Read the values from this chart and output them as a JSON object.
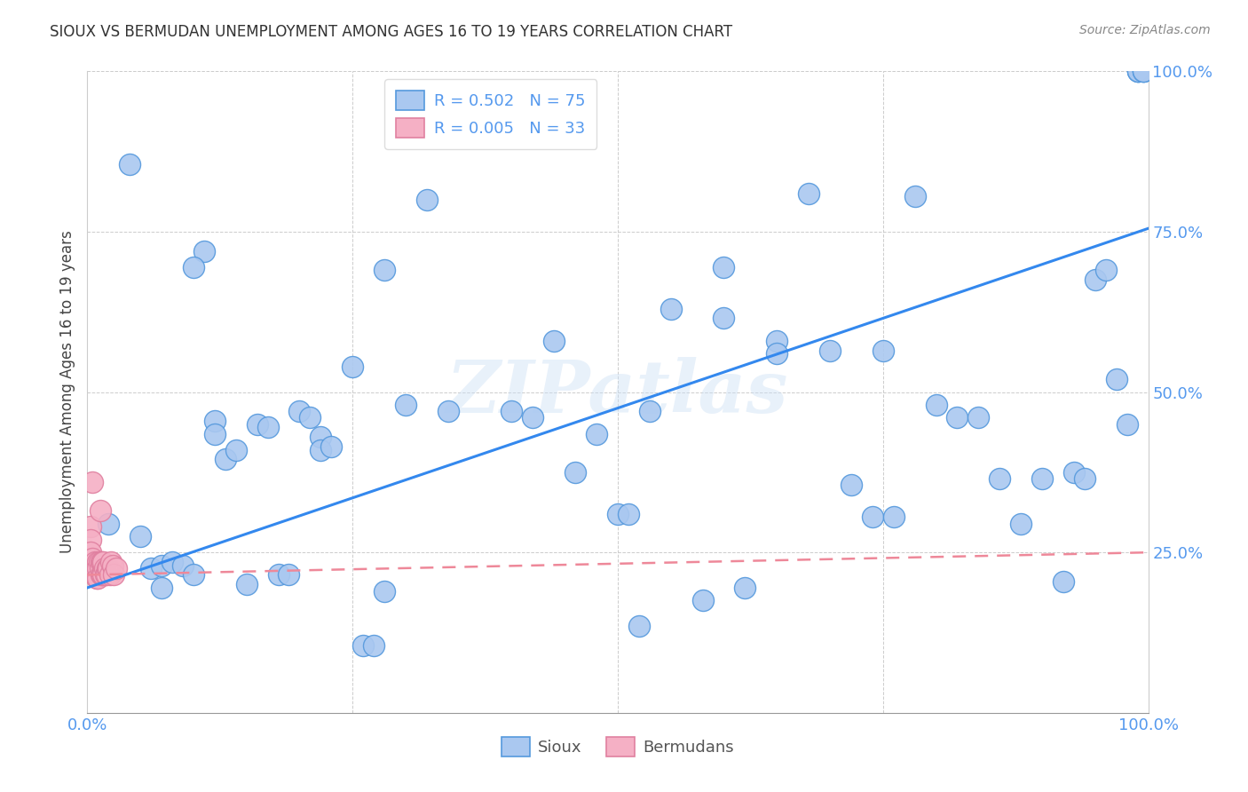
{
  "title": "SIOUX VS BERMUDAN UNEMPLOYMENT AMONG AGES 16 TO 19 YEARS CORRELATION CHART",
  "source": "Source: ZipAtlas.com",
  "ylabel": "Unemployment Among Ages 16 to 19 years",
  "xlim": [
    0,
    1.0
  ],
  "ylim": [
    0,
    1.0
  ],
  "xticks": [
    0.0,
    0.25,
    0.5,
    0.75,
    1.0
  ],
  "xticklabels": [
    "0.0%",
    "",
    "",
    "",
    "100.0%"
  ],
  "yticks": [
    0.0,
    0.25,
    0.5,
    0.75,
    1.0
  ],
  "yticklabels": [
    "",
    "25.0%",
    "50.0%",
    "75.0%",
    "100.0%"
  ],
  "sioux_R": "0.502",
  "sioux_N": "75",
  "bermuda_R": "0.005",
  "bermuda_N": "33",
  "sioux_color": "#aac8f0",
  "bermuda_color": "#f5b0c5",
  "sioux_edge_color": "#5599dd",
  "bermuda_edge_color": "#e080a0",
  "sioux_line_color": "#3388ee",
  "bermuda_line_color": "#ee8899",
  "watermark": "ZIPatlas",
  "tick_color": "#5599ee",
  "sioux_line_y0": 0.195,
  "sioux_line_y1": 0.755,
  "bermuda_line_y0": 0.215,
  "bermuda_line_y1": 0.25,
  "sioux_x": [
    0.02,
    0.04,
    0.05,
    0.06,
    0.07,
    0.07,
    0.08,
    0.09,
    0.1,
    0.11,
    0.12,
    0.12,
    0.13,
    0.14,
    0.15,
    0.16,
    0.17,
    0.18,
    0.19,
    0.2,
    0.21,
    0.22,
    0.22,
    0.23,
    0.25,
    0.26,
    0.27,
    0.28,
    0.3,
    0.32,
    0.34,
    0.4,
    0.42,
    0.44,
    0.46,
    0.48,
    0.5,
    0.51,
    0.52,
    0.53,
    0.55,
    0.58,
    0.6,
    0.62,
    0.65,
    0.68,
    0.7,
    0.72,
    0.74,
    0.75,
    0.76,
    0.78,
    0.8,
    0.82,
    0.84,
    0.86,
    0.88,
    0.9,
    0.92,
    0.93,
    0.94,
    0.95,
    0.96,
    0.97,
    0.98,
    0.99,
    0.99,
    0.99,
    0.995,
    0.995,
    0.995,
    0.1,
    0.28,
    0.6,
    0.65
  ],
  "sioux_y": [
    0.295,
    0.855,
    0.275,
    0.225,
    0.23,
    0.195,
    0.235,
    0.23,
    0.215,
    0.72,
    0.455,
    0.435,
    0.395,
    0.41,
    0.2,
    0.45,
    0.445,
    0.215,
    0.215,
    0.47,
    0.46,
    0.43,
    0.41,
    0.415,
    0.54,
    0.105,
    0.105,
    0.19,
    0.48,
    0.8,
    0.47,
    0.47,
    0.46,
    0.58,
    0.375,
    0.435,
    0.31,
    0.31,
    0.135,
    0.47,
    0.63,
    0.175,
    0.615,
    0.195,
    0.58,
    0.81,
    0.565,
    0.355,
    0.305,
    0.565,
    0.305,
    0.805,
    0.48,
    0.46,
    0.46,
    0.365,
    0.295,
    0.365,
    0.205,
    0.375,
    0.365,
    0.675,
    0.69,
    0.52,
    0.45,
    1.0,
    1.0,
    1.0,
    1.0,
    1.0,
    1.0,
    0.695,
    0.69,
    0.695,
    0.56
  ],
  "bermuda_x": [
    0.003,
    0.003,
    0.003,
    0.005,
    0.005,
    0.006,
    0.007,
    0.007,
    0.008,
    0.009,
    0.009,
    0.01,
    0.01,
    0.01,
    0.011,
    0.012,
    0.012,
    0.013,
    0.013,
    0.014,
    0.014,
    0.015,
    0.015,
    0.016,
    0.017,
    0.018,
    0.019,
    0.02,
    0.021,
    0.022,
    0.024,
    0.025,
    0.027
  ],
  "bermuda_y": [
    0.29,
    0.27,
    0.25,
    0.36,
    0.24,
    0.23,
    0.235,
    0.215,
    0.215,
    0.23,
    0.21,
    0.235,
    0.225,
    0.21,
    0.235,
    0.315,
    0.225,
    0.235,
    0.215,
    0.235,
    0.215,
    0.235,
    0.215,
    0.225,
    0.215,
    0.215,
    0.225,
    0.225,
    0.215,
    0.235,
    0.23,
    0.215,
    0.225
  ]
}
